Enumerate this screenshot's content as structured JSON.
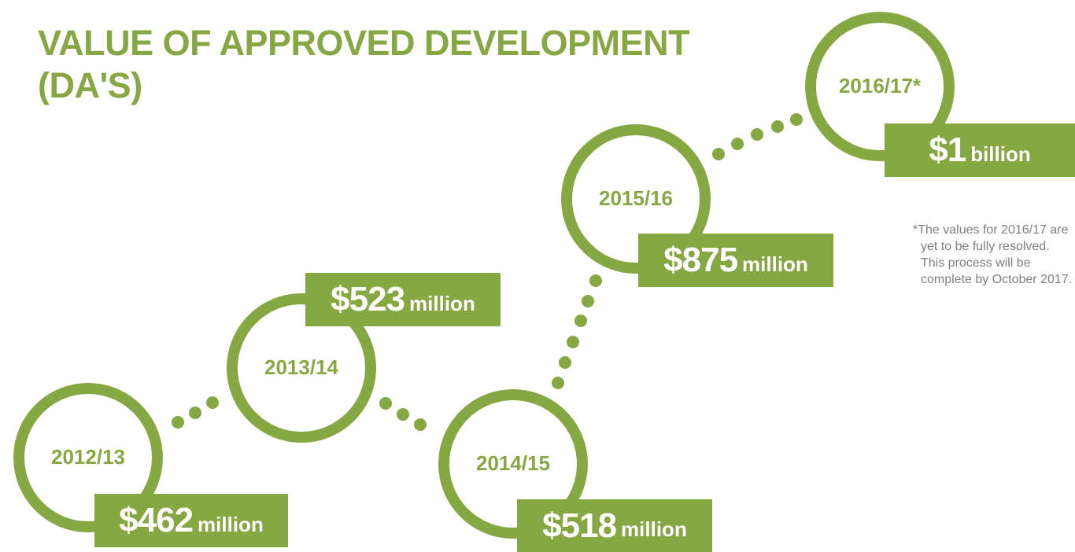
{
  "title": "VALUE OF APPROVED DEVELOPMENT (DA'S)",
  "items": [
    {
      "year": "2012/13",
      "amount": "$462",
      "unit": "million"
    },
    {
      "year": "2013/14",
      "amount": "$523",
      "unit": "million"
    },
    {
      "year": "2014/15",
      "amount": "$518",
      "unit": "million"
    },
    {
      "year": "2015/16",
      "amount": "$875",
      "unit": "million"
    },
    {
      "year": "2016/17*",
      "amount": "$1",
      "unit": "billion"
    }
  ],
  "note": "*The values for 2016/17 are yet to be fully resolved. This process will be complete by October 2017."
}
